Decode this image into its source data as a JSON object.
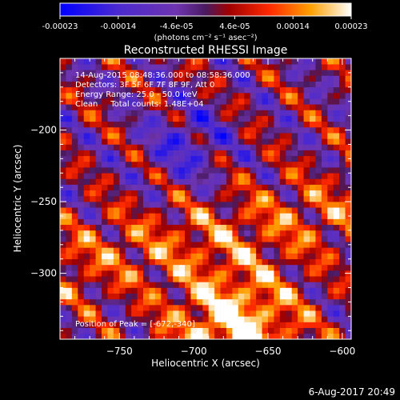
{
  "colorbar": {
    "ticks": [
      "-0.00023",
      "-0.00014",
      "-4.6e-05",
      "4.6e-05",
      "0.00014",
      "0.00023"
    ],
    "units": "(photons cm⁻² s⁻¹ asec⁻²)"
  },
  "chart_data": {
    "type": "heatmap",
    "title": "Reconstructed RHESSI Image",
    "xlabel": "Heliocentric X (arcsec)",
    "ylabel": "Heliocentric Y (arcsec)",
    "xlim": [
      -790,
      -594
    ],
    "ylim": [
      -346,
      -150
    ],
    "x_ticks": [
      -750,
      -700,
      -650,
      -600
    ],
    "y_ticks": [
      -200,
      -250,
      -300
    ],
    "value_range": [
      -0.00023,
      0.00023
    ],
    "annotations": [
      "14-Aug-2015 08:48:36.000 to 08:58:36.000",
      "Detectors: 3F 5F 6F 7F 8F 9F, Att 0",
      "Energy Range: 25.0 - 50.0 keV",
      "Clean     Total counts: 1.48E+04"
    ],
    "peak_label": "Position of Peak = [-672,-340]",
    "peak": [
      -672,
      -340
    ]
  },
  "footer": {
    "timestamp": "6-Aug-2017 20:49"
  },
  "colors": {
    "background": "#000000",
    "text": "#ffffff"
  }
}
